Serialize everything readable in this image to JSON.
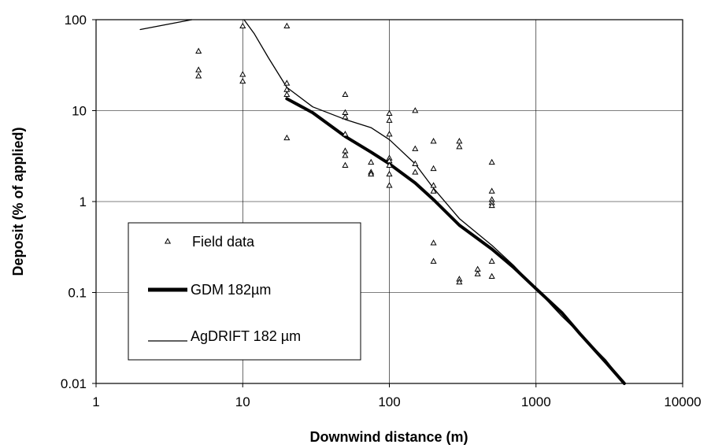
{
  "chart_data": {
    "type": "scatter",
    "xlabel": "Downwind distance (m)",
    "ylabel": "Deposit (% of applied)",
    "xscale": "log",
    "yscale": "log",
    "xlim": [
      1,
      10000
    ],
    "ylim": [
      0.01,
      100
    ],
    "xticks": [
      "1",
      "10",
      "100",
      "1000",
      "10000"
    ],
    "yticks": [
      "0.01",
      "0.1",
      "1",
      "10",
      "100"
    ],
    "grid": true,
    "legend_position": "lower-left",
    "series": [
      {
        "name": "Field data",
        "kind": "markers",
        "marker": "triangle",
        "points": [
          [
            5,
            45
          ],
          [
            5,
            28
          ],
          [
            5,
            24
          ],
          [
            10,
            85
          ],
          [
            10,
            25
          ],
          [
            10,
            21
          ],
          [
            20,
            85
          ],
          [
            20,
            20
          ],
          [
            20,
            17
          ],
          [
            20,
            15
          ],
          [
            20,
            5
          ],
          [
            50,
            15
          ],
          [
            50,
            9.5
          ],
          [
            50,
            8.5
          ],
          [
            50,
            5.5
          ],
          [
            50,
            3.6
          ],
          [
            50,
            3.2
          ],
          [
            50,
            2.5
          ],
          [
            75,
            2.7
          ],
          [
            75,
            2.1
          ],
          [
            75,
            2.0
          ],
          [
            100,
            9.3
          ],
          [
            100,
            7.8
          ],
          [
            100,
            5.5
          ],
          [
            100,
            3.0
          ],
          [
            100,
            2.8
          ],
          [
            100,
            2.5
          ],
          [
            100,
            2.0
          ],
          [
            100,
            1.5
          ],
          [
            150,
            10
          ],
          [
            150,
            3.8
          ],
          [
            150,
            2.6
          ],
          [
            150,
            2.1
          ],
          [
            200,
            4.6
          ],
          [
            200,
            2.3
          ],
          [
            200,
            1.5
          ],
          [
            200,
            1.3
          ],
          [
            200,
            0.35
          ],
          [
            200,
            0.22
          ],
          [
            300,
            4.6
          ],
          [
            300,
            4.0
          ],
          [
            300,
            0.14
          ],
          [
            300,
            0.13
          ],
          [
            400,
            0.18
          ],
          [
            400,
            0.16
          ],
          [
            500,
            2.7
          ],
          [
            500,
            1.3
          ],
          [
            500,
            1.05
          ],
          [
            500,
            0.97
          ],
          [
            500,
            0.9
          ],
          [
            500,
            0.22
          ],
          [
            500,
            0.15
          ]
        ]
      },
      {
        "name": "GDM 182µm",
        "kind": "line",
        "width": "thick",
        "points": [
          [
            20,
            13.5
          ],
          [
            30,
            9.5
          ],
          [
            50,
            5.2
          ],
          [
            75,
            3.5
          ],
          [
            100,
            2.6
          ],
          [
            150,
            1.6
          ],
          [
            200,
            1.05
          ],
          [
            300,
            0.55
          ],
          [
            500,
            0.3
          ],
          [
            700,
            0.19
          ],
          [
            1000,
            0.11
          ],
          [
            1500,
            0.06
          ],
          [
            2000,
            0.035
          ],
          [
            3000,
            0.017
          ],
          [
            4000,
            0.01
          ]
        ]
      },
      {
        "name": "AgDRIFT 182 µm",
        "kind": "line",
        "width": "thin",
        "points": [
          [
            2,
            78
          ],
          [
            4.5,
            100
          ],
          null,
          [
            10.2,
            100
          ],
          [
            12,
            70
          ],
          [
            15,
            38
          ],
          [
            20,
            18
          ],
          [
            30,
            11
          ],
          [
            50,
            8
          ],
          [
            75,
            6.5
          ],
          [
            100,
            4.8
          ],
          [
            150,
            2.6
          ],
          [
            200,
            1.4
          ],
          [
            300,
            0.65
          ],
          [
            500,
            0.33
          ],
          [
            700,
            0.2
          ],
          [
            1000,
            0.11
          ],
          [
            1500,
            0.055
          ],
          [
            2000,
            0.035
          ],
          [
            3000,
            0.018
          ],
          [
            4000,
            0.01
          ]
        ]
      }
    ]
  }
}
